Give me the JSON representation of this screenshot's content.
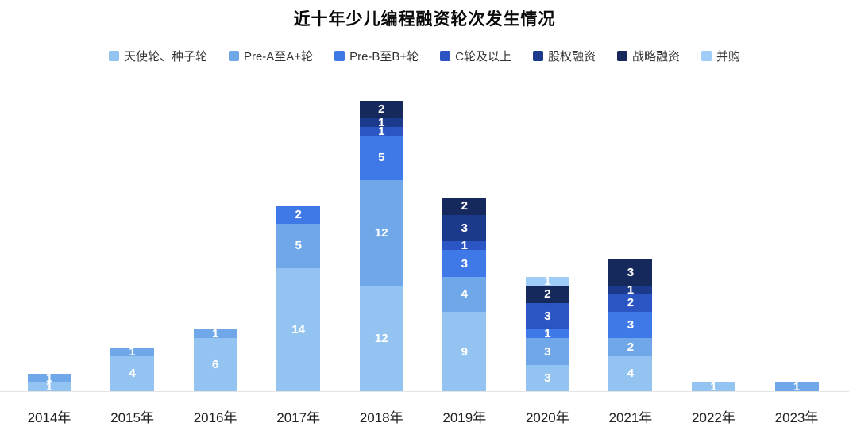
{
  "title": "近十年少儿编程融资轮次发生情况",
  "chart_data": {
    "type": "bar",
    "stacked": true,
    "title": "近十年少儿编程融资轮次发生情况",
    "xlabel": "",
    "ylabel": "",
    "ylim": [
      0,
      36
    ],
    "grid": false,
    "legend_position": "top",
    "value_labels": "inside-white",
    "categories": [
      "2014年",
      "2015年",
      "2016年",
      "2017年",
      "2018年",
      "2019年",
      "2020年",
      "2021年",
      "2022年",
      "2023年"
    ],
    "series": [
      {
        "name": "天使轮、种子轮",
        "color": "#93C3F1",
        "values": [
          1,
          4,
          6,
          14,
          12,
          9,
          3,
          4,
          1,
          0
        ]
      },
      {
        "name": "Pre-A至A+轮",
        "color": "#6FA7E9",
        "values": [
          1,
          1,
          1,
          5,
          12,
          4,
          3,
          2,
          0,
          1
        ]
      },
      {
        "name": "Pre-B至B+轮",
        "color": "#3F79E8",
        "values": [
          0,
          0,
          0,
          2,
          5,
          3,
          1,
          3,
          0,
          0
        ]
      },
      {
        "name": "C轮及以上",
        "color": "#2A55C2",
        "values": [
          0,
          0,
          0,
          0,
          1,
          1,
          3,
          2,
          0,
          0
        ]
      },
      {
        "name": "股权融资",
        "color": "#1C3A8C",
        "values": [
          0,
          0,
          0,
          0,
          1,
          3,
          0,
          1,
          0,
          0
        ]
      },
      {
        "name": "战略融资",
        "color": "#16295C",
        "values": [
          0,
          0,
          0,
          0,
          2,
          2,
          2,
          3,
          0,
          0
        ]
      },
      {
        "name": "并购",
        "color": "#9FCCF8",
        "values": [
          0,
          0,
          0,
          0,
          0,
          0,
          1,
          0,
          0,
          0
        ]
      }
    ],
    "totals": [
      2,
      5,
      7,
      21,
      33,
      22,
      13,
      15,
      1,
      1
    ]
  }
}
